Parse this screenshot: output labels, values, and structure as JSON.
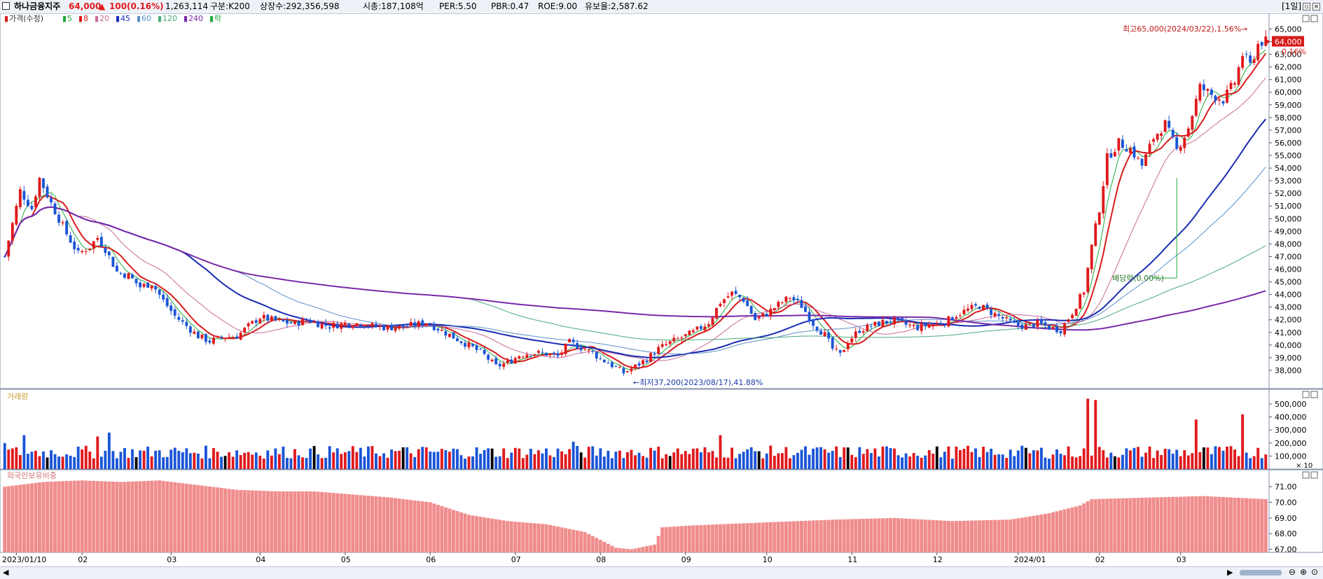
{
  "header": {
    "name": "하나금융지주",
    "price": "64,000",
    "change_arrow": "▲",
    "change": "100",
    "change_pct": "(0.16%)",
    "volume": "1,263,114",
    "segment": "구분:K200",
    "listed": "상장수:292,356,598",
    "mcap": "시총:187,108억",
    "per": "PER:5.50",
    "pbr": "PBR:0.47",
    "roe": "ROE:9.00",
    "reserve": "유보율:2,587.62",
    "period": "[1일]"
  },
  "colors": {
    "up": "#e0191c",
    "down": "#1a55d6",
    "flat": "#000000",
    "foreign": "#f08c8c",
    "ma5": "#1faa3a",
    "ma8": "#d81b1b",
    "ma20": "#c86a9a",
    "ma45": "#1b2bb5",
    "ma60": "#5a8fc8",
    "ma120": "#4aaa78",
    "ma240": "#7a2aa8"
  },
  "legend": {
    "price": {
      "mark": "▮",
      "label": "가격(수정)",
      "color": "#d81b1b"
    },
    "items": [
      {
        "mark": "▮",
        "label": "5",
        "color": "#1faa3a"
      },
      {
        "mark": "▮",
        "label": "8",
        "color": "#d81b1b"
      },
      {
        "mark": "▮",
        "label": "20",
        "color": "#c86a9a"
      },
      {
        "mark": "▮",
        "label": "45",
        "color": "#1b2bb5"
      },
      {
        "mark": "▮",
        "label": "60",
        "color": "#5a8fc8"
      },
      {
        "mark": "▮",
        "label": "120",
        "color": "#4aaa78"
      },
      {
        "mark": "▮",
        "label": "240",
        "color": "#7a2aa8"
      },
      {
        "mark": "▮",
        "label": "락",
        "color": "#1faa3a"
      }
    ]
  },
  "annotations": {
    "high": "최고65,000(2024/03/22),1.56%→",
    "low": "←최저37,200(2023/08/17),41.88%",
    "dividend": "배당락(0.00%)",
    "current_price": "64,000",
    "current_pct": "0.16%"
  },
  "panels": {
    "volume_title": "거래량",
    "foreign_title": "외국인보유비중",
    "volume_unit": "× 10"
  },
  "chart_data": [
    {
      "type": "candlestick",
      "title": "가격(수정)",
      "ylim": [
        37000,
        65800
      ],
      "y_ticks": [
        "38,000",
        "39,000",
        "40,000",
        "41,000",
        "42,000",
        "43,000",
        "44,000",
        "45,000",
        "46,000",
        "47,000",
        "48,000",
        "49,000",
        "50,000",
        "51,000",
        "52,000",
        "53,000",
        "54,000",
        "55,000",
        "56,000",
        "57,000",
        "58,000",
        "59,000",
        "60,000",
        "61,000",
        "62,000",
        "63,000",
        "64,000",
        "65,000"
      ],
      "x_labels": [
        "2023/01/10",
        "02",
        "03",
        "04",
        "05",
        "06",
        "07",
        "08",
        "09",
        "10",
        "11",
        "12",
        "2024/01",
        "02",
        "03"
      ],
      "anchors": [
        [
          0,
          47000
        ],
        [
          4,
          52200
        ],
        [
          7,
          50800
        ],
        [
          9,
          53200
        ],
        [
          12,
          51200
        ],
        [
          16,
          48800
        ],
        [
          19,
          47200
        ],
        [
          22,
          47800
        ],
        [
          24,
          48500
        ],
        [
          26,
          47600
        ],
        [
          29,
          45800
        ],
        [
          32,
          45500
        ],
        [
          35,
          44600
        ],
        [
          38,
          44900
        ],
        [
          41,
          43500
        ],
        [
          44,
          42300
        ],
        [
          47,
          41500
        ],
        [
          50,
          40700
        ],
        [
          53,
          40300
        ],
        [
          56,
          40600
        ],
        [
          60,
          40700
        ],
        [
          63,
          41500
        ],
        [
          66,
          42200
        ],
        [
          69,
          42000
        ],
        [
          72,
          41800
        ],
        [
          75,
          41700
        ],
        [
          78,
          42000
        ],
        [
          81,
          41700
        ],
        [
          84,
          41500
        ],
        [
          88,
          41700
        ],
        [
          92,
          41700
        ],
        [
          95,
          41500
        ],
        [
          98,
          41400
        ],
        [
          102,
          41400
        ],
        [
          106,
          41600
        ],
        [
          109,
          41800
        ],
        [
          112,
          41300
        ],
        [
          115,
          40800
        ],
        [
          118,
          40300
        ],
        [
          121,
          39800
        ],
        [
          124,
          39200
        ],
        [
          127,
          38300
        ],
        [
          130,
          38600
        ],
        [
          133,
          39200
        ],
        [
          136,
          39400
        ],
        [
          140,
          39300
        ],
        [
          143,
          39100
        ],
        [
          146,
          40200
        ],
        [
          149,
          39800
        ],
        [
          152,
          39400
        ],
        [
          154,
          38900
        ],
        [
          156,
          38600
        ],
        [
          158,
          38200
        ],
        [
          160,
          37800
        ],
        [
          163,
          38300
        ],
        [
          166,
          38900
        ],
        [
          169,
          39700
        ],
        [
          172,
          40200
        ],
        [
          175,
          40600
        ],
        [
          178,
          41000
        ],
        [
          182,
          41800
        ],
        [
          185,
          43400
        ],
        [
          188,
          44100
        ],
        [
          191,
          43600
        ],
        [
          194,
          42000
        ],
        [
          197,
          42500
        ],
        [
          200,
          43200
        ],
        [
          203,
          43800
        ],
        [
          206,
          43100
        ],
        [
          209,
          41700
        ],
        [
          212,
          40800
        ],
        [
          214,
          39700
        ],
        [
          216,
          39200
        ],
        [
          218,
          40300
        ],
        [
          221,
          41200
        ],
        [
          224,
          41500
        ],
        [
          227,
          41800
        ],
        [
          230,
          41900
        ],
        [
          233,
          41600
        ],
        [
          236,
          41400
        ],
        [
          239,
          41600
        ],
        [
          243,
          41800
        ],
        [
          246,
          42400
        ],
        [
          249,
          42800
        ],
        [
          252,
          43100
        ],
        [
          255,
          42600
        ],
        [
          258,
          42100
        ],
        [
          261,
          41600
        ],
        [
          264,
          41500
        ],
        [
          267,
          41700
        ],
        [
          270,
          41400
        ],
        [
          273,
          41200
        ],
        [
          276,
          42600
        ],
        [
          279,
          44300
        ],
        [
          281,
          47800
        ],
        [
          283,
          50800
        ],
        [
          285,
          54800
        ],
        [
          288,
          56000
        ],
        [
          291,
          55500
        ],
        [
          294,
          54200
        ],
        [
          297,
          56400
        ],
        [
          300,
          57500
        ],
        [
          303,
          55400
        ],
        [
          306,
          57200
        ],
        [
          309,
          60400
        ],
        [
          312,
          59800
        ],
        [
          315,
          59400
        ],
        [
          318,
          60800
        ],
        [
          320,
          63000
        ],
        [
          322,
          62100
        ],
        [
          324,
          63800
        ],
        [
          325,
          64000
        ]
      ],
      "series": [
        {
          "name": "5",
          "color": "#1faa3a",
          "smooth": 5
        },
        {
          "name": "8",
          "color": "#d81b1b",
          "smooth": 8
        },
        {
          "name": "20",
          "color": "#c86a9a",
          "smooth": 20
        },
        {
          "name": "45",
          "color": "#1b2bb5",
          "smooth": 45
        },
        {
          "name": "60",
          "color": "#5a8fc8",
          "smooth": 60
        },
        {
          "name": "120",
          "color": "#4aaa78",
          "smooth": 120
        },
        {
          "name": "240",
          "color": "#7a2aa8",
          "smooth": 240
        }
      ]
    },
    {
      "type": "bar",
      "title": "거래량",
      "unit": "× 10",
      "ylim": [
        0,
        580000
      ],
      "y_ticks": [
        "100,000",
        "200,000",
        "300,000",
        "400,000",
        "500,000"
      ],
      "values_note": "bars colored by candle direction",
      "peaks": [
        [
          0,
          200000
        ],
        [
          5,
          260000
        ],
        [
          24,
          250000
        ],
        [
          27,
          280000
        ],
        [
          147,
          210000
        ],
        [
          185,
          260000
        ],
        [
          280,
          540000
        ],
        [
          282,
          530000
        ],
        [
          308,
          380000
        ],
        [
          320,
          420000
        ]
      ]
    },
    {
      "type": "area",
      "title": "외국인보유비중",
      "ylim": [
        66.8,
        71.9
      ],
      "y_ticks": [
        "67.00",
        "68.00",
        "69.00",
        "70.00",
        "71.00"
      ],
      "anchors": [
        [
          0,
          71.0
        ],
        [
          10,
          71.3
        ],
        [
          20,
          71.4
        ],
        [
          30,
          71.3
        ],
        [
          40,
          71.4
        ],
        [
          50,
          71.1
        ],
        [
          60,
          70.8
        ],
        [
          70,
          70.7
        ],
        [
          80,
          70.7
        ],
        [
          90,
          70.5
        ],
        [
          100,
          70.3
        ],
        [
          110,
          70.0
        ],
        [
          120,
          69.2
        ],
        [
          130,
          68.8
        ],
        [
          140,
          68.6
        ],
        [
          150,
          68.1
        ],
        [
          158,
          67.1
        ],
        [
          162,
          67.0
        ],
        [
          168,
          67.3
        ],
        [
          170,
          68.4
        ],
        [
          176,
          68.5
        ],
        [
          185,
          68.6
        ],
        [
          195,
          68.7
        ],
        [
          205,
          68.8
        ],
        [
          215,
          68.9
        ],
        [
          230,
          69.0
        ],
        [
          245,
          68.8
        ],
        [
          260,
          68.9
        ],
        [
          270,
          69.3
        ],
        [
          278,
          69.8
        ],
        [
          281,
          70.2
        ],
        [
          295,
          70.3
        ],
        [
          310,
          70.4
        ],
        [
          326,
          70.2
        ]
      ]
    }
  ]
}
